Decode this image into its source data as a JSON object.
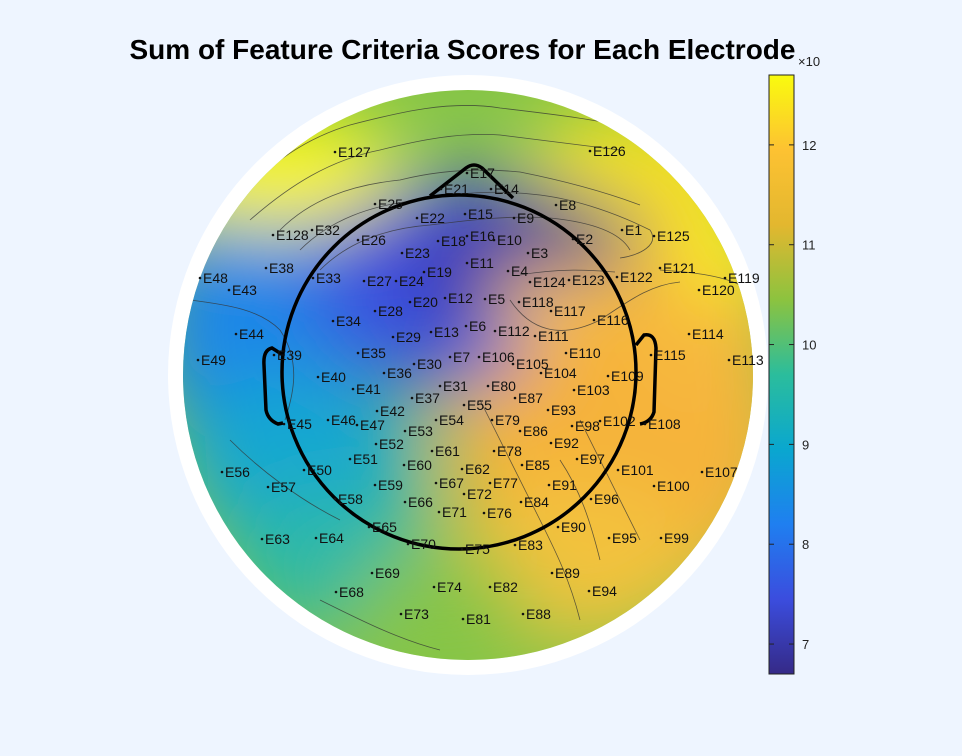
{
  "chart_data": {
    "type": "heatmap",
    "title": "Sum of Feature Criteria Scores for Each Electrode",
    "colorbar": {
      "ticks": [
        7,
        8,
        9,
        10,
        11,
        12
      ],
      "range": [
        6.7,
        12.7
      ],
      "exponent_label": "×10",
      "colormap": "parula"
    },
    "electrodes": [
      "E1",
      "E2",
      "E3",
      "E4",
      "E5",
      "E6",
      "E7",
      "E8",
      "E9",
      "E10",
      "E11",
      "E12",
      "E13",
      "E14",
      "E15",
      "E16",
      "E17",
      "E18",
      "E19",
      "E20",
      "E21",
      "E22",
      "E23",
      "E24",
      "E25",
      "E26",
      "E27",
      "E28",
      "E29",
      "E30",
      "E31",
      "E32",
      "E33",
      "E34",
      "E35",
      "E36",
      "E37",
      "E38",
      "E39",
      "E40",
      "E41",
      "E42",
      "E43",
      "E44",
      "E45",
      "E46",
      "E47",
      "E48",
      "E49",
      "E50",
      "E51",
      "E52",
      "E53",
      "E54",
      "E55",
      "E56",
      "E57",
      "E58",
      "E59",
      "E60",
      "E61",
      "E62",
      "E63",
      "E64",
      "E65",
      "E66",
      "E67",
      "E68",
      "E69",
      "E70",
      "E71",
      "E72",
      "E73",
      "E74",
      "E75",
      "E76",
      "E77",
      "E78",
      "E79",
      "E80",
      "E81",
      "E82",
      "E83",
      "E84",
      "E85",
      "E86",
      "E87",
      "E88",
      "E89",
      "E90",
      "E91",
      "E92",
      "E93",
      "E94",
      "E95",
      "E96",
      "E97",
      "E98",
      "E99",
      "E100",
      "E101",
      "E102",
      "E103",
      "E104",
      "E105",
      "E106",
      "E107",
      "E108",
      "E109",
      "E110",
      "E111",
      "E112",
      "E113",
      "E114",
      "E115",
      "E116",
      "E117",
      "E118",
      "E119",
      "E120",
      "E121",
      "E122",
      "E123",
      "E124",
      "E125",
      "E126",
      "E127",
      "E128"
    ],
    "colors": {
      "parula": [
        "#352a87",
        "#3b4dde",
        "#1f7ff0",
        "#0aa7cf",
        "#2bbd9c",
        "#8cc33f",
        "#e3b72f",
        "#fdc232",
        "#f9fb0e"
      ]
    }
  }
}
